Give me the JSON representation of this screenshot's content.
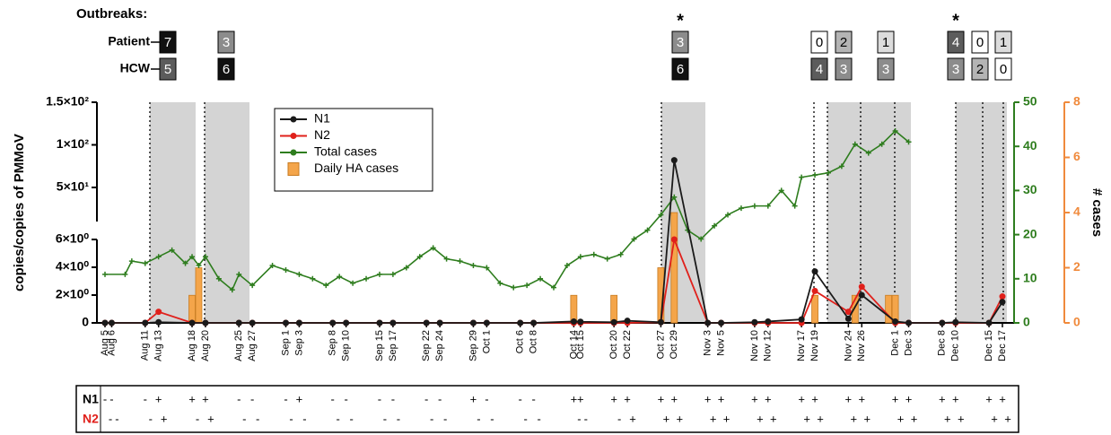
{
  "chart_data": {
    "type": "line",
    "y_label": "copies/copies of PMMoV",
    "y2_label": "# cases",
    "x": [
      "Aug 5",
      "Aug 6",
      "Aug 11",
      "Aug 13",
      "Aug 18",
      "Aug 20",
      "Aug 25",
      "Aug 27",
      "Sep 1",
      "Sep 3",
      "Sep 8",
      "Sep 10",
      "Sep 15",
      "Sep 17",
      "Sep 22",
      "Sep 24",
      "Sep 29",
      "Oct 1",
      "Oct 6",
      "Oct 8",
      "Oct 14",
      "Oct 15",
      "Oct 20",
      "Oct 22",
      "Oct 27",
      "Oct 29",
      "Nov 3",
      "Nov 5",
      "Nov 10",
      "Nov 12",
      "Nov 17",
      "Nov 19",
      "Nov 24",
      "Nov 26",
      "Dec 1",
      "Dec 3",
      "Dec 8",
      "Dec 10",
      "Dec 15",
      "Dec 17"
    ],
    "ylim": [
      0,
      150
    ],
    "ybreak": [
      6,
      10
    ],
    "yticks": [
      {
        "value": 0,
        "label": "0"
      },
      {
        "value": 2,
        "label": "2×10⁰"
      },
      {
        "value": 4,
        "label": "4×10⁰"
      },
      {
        "value": 6,
        "label": "6×10⁰"
      },
      {
        "value": 50,
        "label": "5×10¹"
      },
      {
        "value": 100,
        "label": "1×10²"
      },
      {
        "value": 150,
        "label": "1.5×10²"
      }
    ],
    "y2lim": [
      0,
      50
    ],
    "y2ticks": [
      0,
      10,
      20,
      30,
      40,
      50
    ],
    "y3lim": [
      0,
      8
    ],
    "y3ticks": [
      0,
      2,
      4,
      6,
      8
    ],
    "series": [
      {
        "name": "N1",
        "color": "#1a1a1a",
        "values": [
          0,
          0,
          0,
          0.05,
          0,
          0,
          0,
          0,
          0,
          0,
          0,
          0,
          0,
          0,
          0,
          0,
          0,
          0,
          0,
          0,
          0.1,
          0.08,
          0.05,
          0.15,
          0.05,
          82,
          0,
          0,
          0.05,
          0.1,
          0.25,
          3.7,
          0.3,
          2.0,
          0.1,
          0,
          0,
          0.05,
          0,
          1.5
        ]
      },
      {
        "name": "N2",
        "color": "#e0201b",
        "values": [
          0,
          0,
          0,
          0.8,
          0,
          0,
          0,
          0,
          0,
          0,
          0,
          0,
          0,
          0,
          0,
          0,
          0,
          0,
          0,
          0,
          0,
          0,
          0,
          0,
          0.05,
          6,
          0,
          0,
          0,
          0,
          0,
          2.3,
          0.8,
          2.6,
          0,
          0,
          0,
          0,
          0,
          1.9
        ]
      },
      {
        "name": "Total cases",
        "color": "#2e7d1e",
        "axis": "y2",
        "x": [
          "Aug 5",
          "Aug 8",
          "Aug 9",
          "Aug 11",
          "Aug 13",
          "Aug 15",
          "Aug 17",
          "Aug 18",
          "Aug 19",
          "Aug 20",
          "Aug 22",
          "Aug 24",
          "Aug 25",
          "Aug 27",
          "Aug 30",
          "Sep 1",
          "Sep 3",
          "Sep 5",
          "Sep 7",
          "Sep 9",
          "Sep 11",
          "Sep 13",
          "Sep 15",
          "Sep 17",
          "Sep 19",
          "Sep 21",
          "Sep 23",
          "Sep 25",
          "Sep 27",
          "Sep 29",
          "Oct 1",
          "Oct 3",
          "Oct 5",
          "Oct 7",
          "Oct 9",
          "Oct 11",
          "Oct 13",
          "Oct 15",
          "Oct 17",
          "Oct 19",
          "Oct 21",
          "Oct 23",
          "Oct 25",
          "Oct 27",
          "Oct 29",
          "Oct 31",
          "Nov 2",
          "Nov 4",
          "Nov 6",
          "Nov 8",
          "Nov 10",
          "Nov 12",
          "Nov 14",
          "Nov 16",
          "Nov 17",
          "Nov 19",
          "Nov 21",
          "Nov 23",
          "Nov 25",
          "Nov 27",
          "Nov 29",
          "Dec 1",
          "Dec 3"
        ],
        "values": [
          11,
          11,
          14,
          13.5,
          15,
          16.5,
          13.5,
          15,
          13,
          15,
          10,
          7.5,
          11,
          8.5,
          13,
          12,
          11,
          10,
          8.5,
          10.5,
          9,
          10,
          11,
          11,
          12.5,
          15,
          17,
          14.5,
          14,
          13,
          12.5,
          9,
          8,
          8.5,
          10,
          8,
          13,
          15,
          15.5,
          14.5,
          15.5,
          19,
          21,
          24.5,
          28.5,
          21,
          19,
          22,
          24.5,
          26,
          26.5,
          26.5,
          30,
          26.5,
          33,
          33.5,
          34,
          35.5,
          40.5,
          38.5,
          40.5,
          43.5,
          41
        ]
      },
      {
        "name": "Daily HA cases",
        "color": "#f4a54a",
        "type": "bar",
        "axis": "y3",
        "x": [
          "Aug 18",
          "Aug 19",
          "Oct 14",
          "Oct 20",
          "Oct 27",
          "Oct 29",
          "Nov 19",
          "Nov 25",
          "Nov 30",
          "Dec 1"
        ],
        "values": [
          1,
          2,
          1,
          1,
          2,
          4,
          1,
          1,
          1,
          1
        ]
      }
    ]
  },
  "outbreaks": {
    "title": "Outbreaks:",
    "row_labels": [
      "Patient",
      "HCW"
    ],
    "columns": [
      {
        "patient": 7,
        "hcw": 5
      },
      {
        "patient": 3,
        "hcw": 6
      },
      {
        "star": "*",
        "patient": 3,
        "hcw": 6
      },
      {
        "patient": 0,
        "hcw": 4
      },
      {
        "patient": 2,
        "hcw": 3
      },
      {
        "patient": 1,
        "hcw": 3
      },
      {
        "star": "*",
        "patient": 4,
        "hcw": 3
      },
      {
        "patient": 0,
        "hcw": 2
      },
      {
        "patient": 1,
        "hcw": 0
      }
    ]
  },
  "table": {
    "rows": [
      {
        "label": "N1",
        "color": "#000000",
        "cells": [
          "-",
          "-",
          "-",
          "+",
          "+",
          "+",
          "-",
          "-",
          "-",
          "+",
          "-",
          "-",
          "-",
          "-",
          "-",
          "-",
          "+",
          "-",
          "-",
          "-",
          "+",
          "+",
          "+",
          "+",
          "+",
          "+",
          "+",
          "+",
          "+",
          "+",
          "+",
          "+",
          "+",
          "+",
          "+",
          "+",
          "+",
          "+",
          "+",
          "+"
        ]
      },
      {
        "label": "N2",
        "color": "#e0201b",
        "cells": [
          "-",
          "-",
          "-",
          "+",
          "-",
          "+",
          "-",
          "-",
          "-",
          "-",
          "-",
          "-",
          "-",
          "-",
          "-",
          "-",
          "-",
          "-",
          "-",
          "-",
          "-",
          "-",
          "-",
          "+",
          "+",
          "+",
          "+",
          "+",
          "+",
          "+",
          "+",
          "+",
          "+",
          "+",
          "+",
          "+",
          "+",
          "+",
          "+",
          "+"
        ]
      }
    ]
  }
}
